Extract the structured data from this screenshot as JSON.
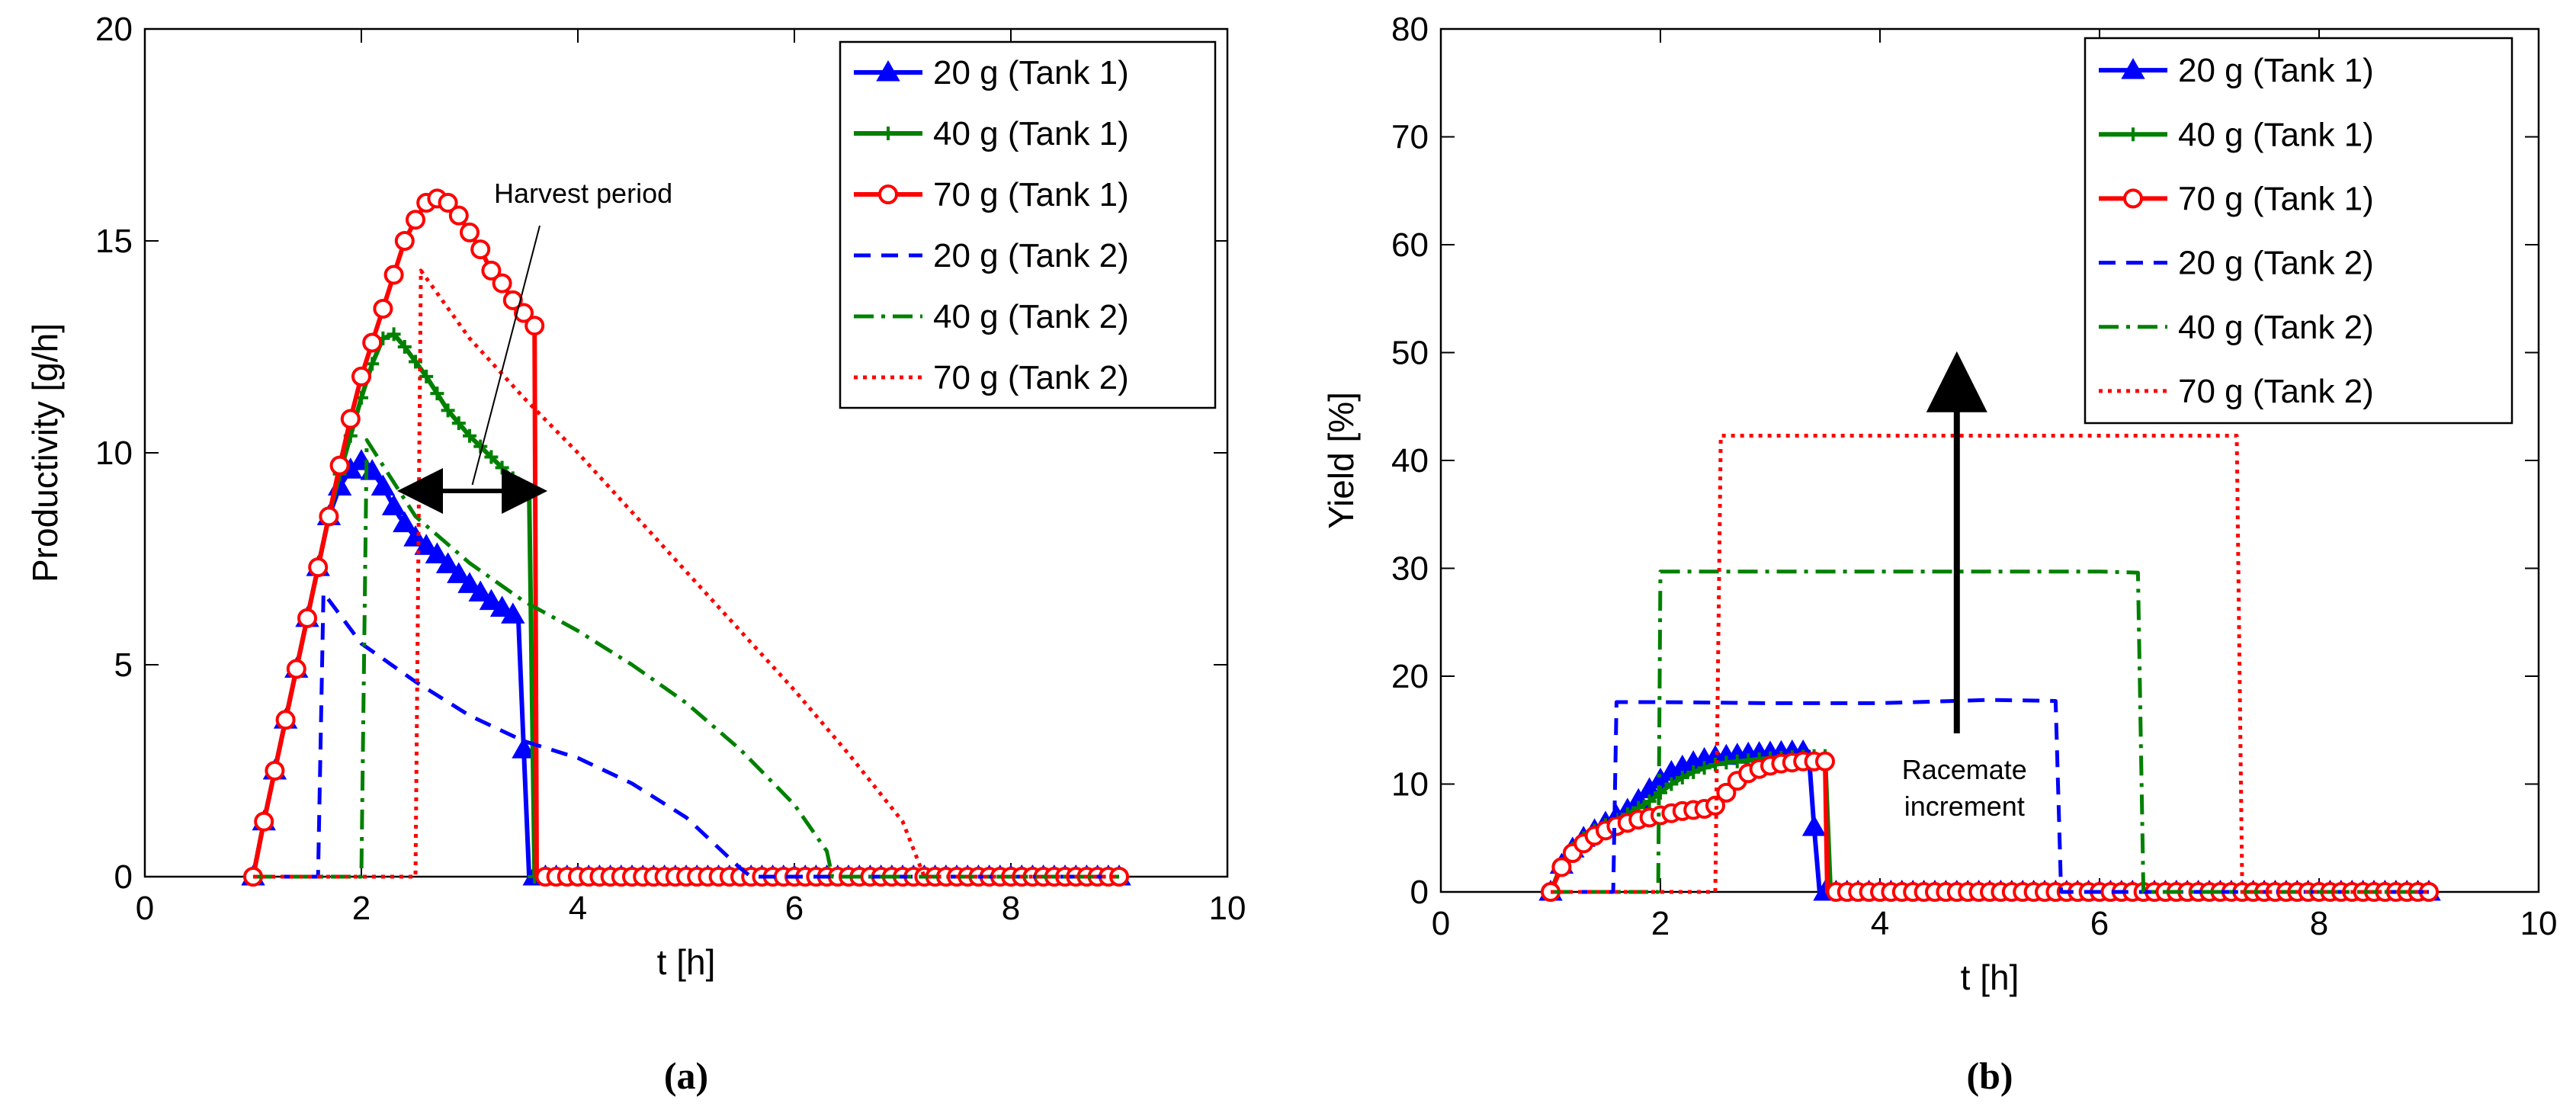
{
  "chart_data": [
    {
      "type": "line",
      "id": "a",
      "caption": "(a)",
      "xlabel": "t [h]",
      "ylabel": "Productivity [g/h]",
      "xlim": [
        0,
        10
      ],
      "ylim": [
        0,
        20
      ],
      "xticks": [
        0,
        2,
        4,
        6,
        8,
        10
      ],
      "yticks": [
        0,
        5,
        10,
        15,
        20
      ],
      "legend_position": "top-right",
      "series": [
        {
          "name": "20 g (Tank 1)",
          "color": "#0000ff",
          "style": "solid",
          "marker": "triangle",
          "x": [
            1.0,
            1.1,
            1.2,
            1.3,
            1.4,
            1.5,
            1.6,
            1.7,
            1.8,
            1.9,
            2.0,
            2.05,
            2.2,
            2.35,
            2.5,
            2.7,
            3.0,
            3.2,
            3.45,
            3.5,
            3.55,
            9.0
          ],
          "y": [
            0,
            1.3,
            2.5,
            3.7,
            4.9,
            6.1,
            7.3,
            8.5,
            9.2,
            9.6,
            9.8,
            9.75,
            9.2,
            8.5,
            8.0,
            7.6,
            6.9,
            6.5,
            6.1,
            3.0,
            0,
            0
          ]
        },
        {
          "name": "40 g (Tank 1)",
          "color": "#008000",
          "style": "solid",
          "marker": "plus",
          "x": [
            1.0,
            1.1,
            1.2,
            1.3,
            1.4,
            1.5,
            1.6,
            1.7,
            1.8,
            1.9,
            2.0,
            2.1,
            2.2,
            2.3,
            2.4,
            2.6,
            2.8,
            3.0,
            3.2,
            3.4,
            3.55,
            3.6,
            9.0
          ],
          "y": [
            0,
            1.3,
            2.5,
            3.7,
            4.9,
            6.1,
            7.3,
            8.5,
            9.5,
            10.4,
            11.3,
            12.1,
            12.7,
            12.8,
            12.5,
            11.8,
            11.0,
            10.4,
            9.9,
            9.4,
            9.1,
            0,
            0
          ]
        },
        {
          "name": "70 g (Tank 1)",
          "color": "#ff0000",
          "style": "solid",
          "marker": "circle",
          "x": [
            1.0,
            1.1,
            1.2,
            1.3,
            1.4,
            1.5,
            1.6,
            1.7,
            1.8,
            1.9,
            2.0,
            2.1,
            2.2,
            2.3,
            2.4,
            2.5,
            2.6,
            2.7,
            2.8,
            2.9,
            3.0,
            3.1,
            3.2,
            3.3,
            3.4,
            3.5,
            3.6,
            3.62,
            9.0
          ],
          "y": [
            0,
            1.3,
            2.5,
            3.7,
            4.9,
            6.1,
            7.3,
            8.5,
            9.7,
            10.8,
            11.8,
            12.6,
            13.4,
            14.2,
            15.0,
            15.5,
            15.9,
            16.0,
            15.9,
            15.6,
            15.2,
            14.8,
            14.3,
            14.0,
            13.6,
            13.3,
            13.0,
            0,
            0
          ]
        },
        {
          "name": "20 g (Tank 2)",
          "color": "#0000ff",
          "style": "dashed",
          "marker": "none",
          "x": [
            1.0,
            1.6,
            1.65,
            2.0,
            2.5,
            3.0,
            3.5,
            4.0,
            4.5,
            5.0,
            5.5,
            5.6,
            9.0
          ],
          "y": [
            0,
            0,
            6.7,
            5.5,
            4.6,
            3.8,
            3.2,
            2.8,
            2.2,
            1.4,
            0.2,
            0,
            0
          ]
        },
        {
          "name": "40 g (Tank 2)",
          "color": "#008000",
          "style": "dashdot",
          "marker": "none",
          "x": [
            1.0,
            2.0,
            2.05,
            2.5,
            3.0,
            3.5,
            4.0,
            4.5,
            5.0,
            5.5,
            6.0,
            6.3,
            6.35,
            9.0
          ],
          "y": [
            0,
            0,
            10.3,
            8.5,
            7.4,
            6.5,
            5.8,
            5.0,
            4.1,
            3.0,
            1.7,
            0.6,
            0,
            0
          ]
        },
        {
          "name": "70 g (Tank 2)",
          "color": "#ff0000",
          "style": "dotted",
          "marker": "none",
          "x": [
            1.0,
            2.5,
            2.55,
            3.0,
            3.5,
            4.0,
            4.5,
            5.0,
            5.5,
            6.0,
            6.5,
            7.0,
            7.2,
            9.0
          ],
          "y": [
            0,
            0,
            14.3,
            12.7,
            11.3,
            10.0,
            8.6,
            7.2,
            5.8,
            4.4,
            2.9,
            1.3,
            0,
            0
          ]
        }
      ],
      "annotations": [
        {
          "text": "Harvest period",
          "type": "double-arrow",
          "x_range": [
            2.5,
            3.55
          ],
          "y": 9.1
        }
      ]
    },
    {
      "type": "line",
      "id": "b",
      "caption": "(b)",
      "xlabel": "t [h]",
      "ylabel": "Yield [%]",
      "xlim": [
        0,
        10
      ],
      "ylim": [
        0,
        80
      ],
      "xticks": [
        0,
        2,
        4,
        6,
        8,
        10
      ],
      "yticks": [
        0,
        10,
        20,
        30,
        40,
        50,
        60,
        70,
        80
      ],
      "legend_position": "top-right",
      "series": [
        {
          "name": "20 g (Tank 1)",
          "color": "#0000ff",
          "style": "solid",
          "marker": "triangle",
          "x": [
            1.0,
            1.1,
            1.2,
            1.3,
            1.4,
            1.5,
            1.6,
            1.7,
            1.8,
            1.9,
            2.0,
            2.1,
            2.2,
            2.3,
            2.4,
            2.5,
            2.6,
            2.8,
            3.0,
            3.2,
            3.35,
            3.4,
            3.45,
            9.0
          ],
          "y": [
            0,
            2.5,
            4.0,
            5.0,
            5.7,
            6.4,
            7.0,
            7.6,
            8.5,
            9.5,
            10.4,
            11.1,
            11.6,
            12.0,
            12.3,
            12.5,
            12.6,
            12.8,
            12.9,
            13.0,
            13.0,
            6.0,
            0,
            0
          ]
        },
        {
          "name": "40 g (Tank 1)",
          "color": "#008000",
          "style": "solid",
          "marker": "plus",
          "x": [
            1.0,
            1.1,
            1.2,
            1.3,
            1.4,
            1.5,
            1.6,
            1.7,
            1.8,
            1.9,
            2.0,
            2.1,
            2.2,
            2.3,
            2.4,
            2.5,
            2.6,
            2.8,
            3.0,
            3.2,
            3.4,
            3.5,
            3.55,
            9.0
          ],
          "y": [
            0,
            2.5,
            4.0,
            5.0,
            5.7,
            6.2,
            6.7,
            7.2,
            7.8,
            8.4,
            9.2,
            10.0,
            10.6,
            11.1,
            11.5,
            11.8,
            12.0,
            12.2,
            12.4,
            12.5,
            12.6,
            12.6,
            0,
            0
          ]
        },
        {
          "name": "70 g (Tank 1)",
          "color": "#ff0000",
          "style": "solid",
          "marker": "circle",
          "x": [
            1.0,
            1.1,
            1.2,
            1.3,
            1.4,
            1.5,
            1.6,
            1.7,
            1.8,
            1.9,
            2.0,
            2.1,
            2.2,
            2.3,
            2.4,
            2.5,
            2.6,
            2.7,
            2.8,
            2.9,
            3.0,
            3.1,
            3.2,
            3.3,
            3.45,
            3.5,
            3.52,
            9.0
          ],
          "y": [
            0,
            2.3,
            3.6,
            4.5,
            5.2,
            5.7,
            6.1,
            6.4,
            6.7,
            6.9,
            7.1,
            7.3,
            7.5,
            7.6,
            7.7,
            8.0,
            9.2,
            10.3,
            11.0,
            11.4,
            11.7,
            11.9,
            12.0,
            12.1,
            12.1,
            12.1,
            0,
            0
          ]
        },
        {
          "name": "20 g (Tank 2)",
          "color": "#0000ff",
          "style": "dashed",
          "marker": "none",
          "x": [
            1.0,
            1.57,
            1.6,
            2.0,
            3.0,
            4.0,
            5.0,
            5.6,
            5.65,
            9.0
          ],
          "y": [
            0,
            0,
            17.6,
            17.6,
            17.5,
            17.5,
            17.8,
            17.7,
            0,
            0
          ]
        },
        {
          "name": "40 g (Tank 2)",
          "color": "#008000",
          "style": "dashdot",
          "marker": "none",
          "x": [
            1.0,
            1.98,
            2.0,
            3.0,
            4.0,
            5.0,
            6.0,
            6.35,
            6.4,
            9.0
          ],
          "y": [
            0,
            0,
            29.7,
            29.7,
            29.7,
            29.7,
            29.7,
            29.6,
            0,
            0
          ]
        },
        {
          "name": "70 g (Tank 2)",
          "color": "#ff0000",
          "style": "dotted",
          "marker": "none",
          "x": [
            1.0,
            2.5,
            2.55,
            3.0,
            4.0,
            5.0,
            6.0,
            7.0,
            7.25,
            7.3,
            9.0
          ],
          "y": [
            0,
            0,
            42.3,
            42.3,
            42.3,
            42.3,
            42.3,
            42.3,
            42.3,
            0,
            0
          ]
        }
      ],
      "annotations": [
        {
          "text": "Racemate\nincrement",
          "type": "arrow-up",
          "x": 4.7,
          "y_from": 14.7,
          "y_to": 48.0,
          "text_lines": [
            "Racemate",
            "increment"
          ]
        }
      ]
    }
  ]
}
